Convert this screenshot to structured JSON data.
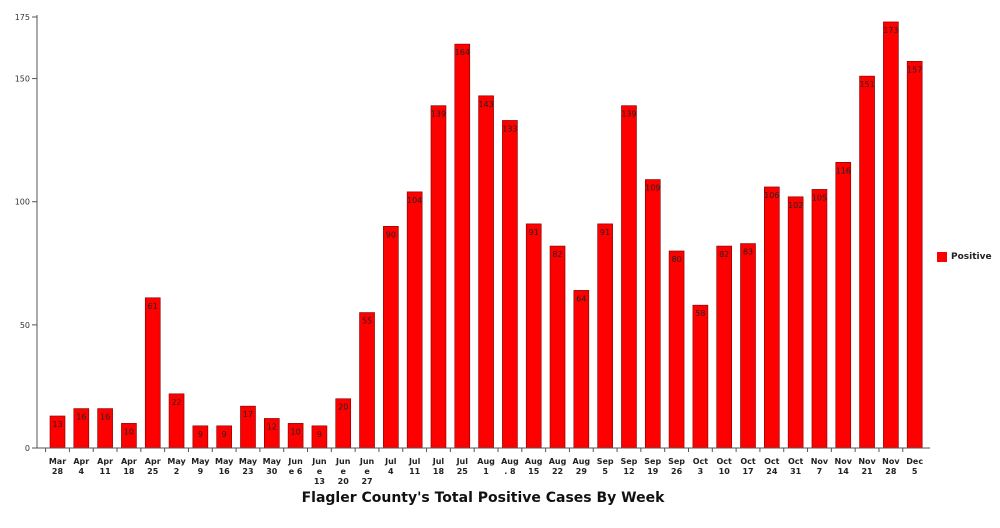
{
  "chart_data": {
    "type": "bar",
    "title": "Flagler County's Total Positive Cases By Week",
    "xlabel": "",
    "ylabel": "",
    "ylim": [
      0,
      175
    ],
    "yticks": [
      0,
      50,
      100,
      150,
      175
    ],
    "grid": false,
    "legend_position": "right",
    "bar_color": "#ff0000",
    "categories": [
      [
        "Mar",
        "28"
      ],
      [
        "Apr",
        "4"
      ],
      [
        "Apr",
        "11"
      ],
      [
        "Apr",
        "18"
      ],
      [
        "Apr",
        "25"
      ],
      [
        "May",
        "2"
      ],
      [
        "May",
        "9"
      ],
      [
        "May",
        "16"
      ],
      [
        "May",
        "23"
      ],
      [
        "May",
        "30"
      ],
      [
        "Jun",
        "e 6"
      ],
      [
        "Jun",
        "e",
        "13"
      ],
      [
        "Jun",
        "e",
        "20"
      ],
      [
        "Jun",
        "e",
        "27"
      ],
      [
        "Jul",
        "4"
      ],
      [
        "Jul",
        "11"
      ],
      [
        "Jul",
        "18"
      ],
      [
        "Jul",
        "25"
      ],
      [
        "Aug",
        "1"
      ],
      [
        "Aug",
        ". 8"
      ],
      [
        "Aug",
        "15"
      ],
      [
        "Aug",
        "22"
      ],
      [
        "Aug",
        "29"
      ],
      [
        "Sep",
        "5"
      ],
      [
        "Sep",
        "12"
      ],
      [
        "Sep",
        "19"
      ],
      [
        "Sep",
        "26"
      ],
      [
        "Oct",
        "3"
      ],
      [
        "Oct",
        "10"
      ],
      [
        "Oct",
        "17"
      ],
      [
        "Oct",
        "24"
      ],
      [
        "Oct",
        "31"
      ],
      [
        "Nov",
        "7"
      ],
      [
        "Nov",
        "14"
      ],
      [
        "Nov",
        "21"
      ],
      [
        "Nov",
        "28"
      ],
      [
        "Dec",
        "5"
      ]
    ],
    "series": [
      {
        "name": "Positive",
        "values": [
          13,
          16,
          16,
          10,
          61,
          22,
          9,
          9,
          17,
          12,
          10,
          9,
          20,
          55,
          90,
          104,
          139,
          164,
          143,
          133,
          91,
          82,
          64,
          91,
          139,
          109,
          80,
          58,
          82,
          83,
          106,
          102,
          105,
          116,
          151,
          173,
          157
        ]
      }
    ]
  }
}
